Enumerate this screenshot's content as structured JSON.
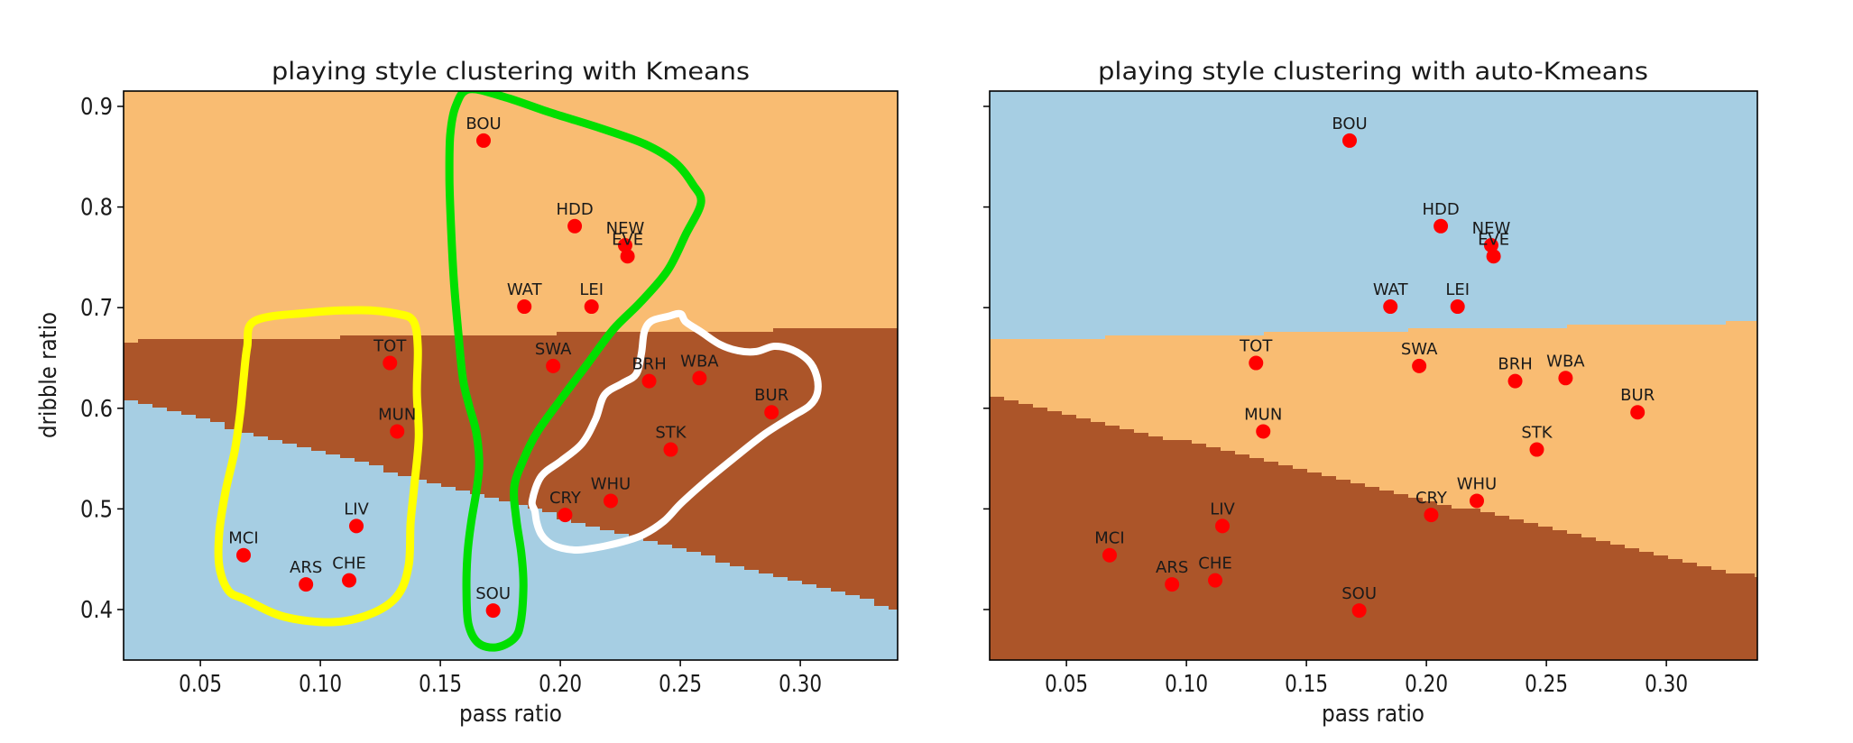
{
  "page": {
    "background": "#ffffff"
  },
  "colors": {
    "region_orange": "#F9BC72",
    "region_brown": "#AC5529",
    "region_blue": "#A6CEE3",
    "point_red": "#FF0000",
    "contour_green": "#00DF00",
    "contour_yellow": "#FFFF00",
    "contour_white": "#FFFFFF",
    "axis_black": "#000000"
  },
  "chart_data": [
    {
      "type": "scatter",
      "title": "playing style clustering with Kmeans",
      "xlabel": "pass ratio",
      "ylabel": "dribble ratio",
      "xlim": [
        0.018,
        0.341
      ],
      "ylim": [
        0.35,
        0.915
      ],
      "grid": false,
      "x_tick_labels": [
        "0.05",
        "0.10",
        "0.15",
        "0.20",
        "0.25",
        "0.30"
      ],
      "x_tick_values": [
        0.05,
        0.1,
        0.15,
        0.2,
        0.25,
        0.3
      ],
      "y_tick_labels": [
        "0.4",
        "0.5",
        "0.6",
        "0.7",
        "0.8",
        "0.9"
      ],
      "y_tick_values": [
        0.4,
        0.5,
        0.6,
        0.7,
        0.8,
        0.9
      ],
      "show_y_tick_labels": true,
      "point_color": "#FF0000",
      "points": [
        {
          "label": "BOU",
          "x": 0.168,
          "y": 0.866
        },
        {
          "label": "HDD",
          "x": 0.206,
          "y": 0.781
        },
        {
          "label": "NEW",
          "x": 0.227,
          "y": 0.762
        },
        {
          "label": "EVE",
          "x": 0.228,
          "y": 0.751
        },
        {
          "label": "WAT",
          "x": 0.185,
          "y": 0.701
        },
        {
          "label": "LEI",
          "x": 0.213,
          "y": 0.701
        },
        {
          "label": "TOT",
          "x": 0.129,
          "y": 0.645
        },
        {
          "label": "SWA",
          "x": 0.197,
          "y": 0.642
        },
        {
          "label": "BRH",
          "x": 0.237,
          "y": 0.627
        },
        {
          "label": "WBA",
          "x": 0.258,
          "y": 0.63
        },
        {
          "label": "BUR",
          "x": 0.288,
          "y": 0.596
        },
        {
          "label": "MUN",
          "x": 0.132,
          "y": 0.577
        },
        {
          "label": "STK",
          "x": 0.246,
          "y": 0.559
        },
        {
          "label": "WHU",
          "x": 0.221,
          "y": 0.508
        },
        {
          "label": "CRY",
          "x": 0.202,
          "y": 0.494
        },
        {
          "label": "LIV",
          "x": 0.115,
          "y": 0.483
        },
        {
          "label": "MCI",
          "x": 0.068,
          "y": 0.454
        },
        {
          "label": "ARS",
          "x": 0.094,
          "y": 0.425
        },
        {
          "label": "CHE",
          "x": 0.112,
          "y": 0.429
        },
        {
          "label": "SOU",
          "x": 0.172,
          "y": 0.399
        }
      ],
      "decision_regions": {
        "top_color": "#F9BC72",
        "middle_color": "#AC5529",
        "bottom_color": "#A6CEE3",
        "upper_boundary_y": [
          0.667,
          0.68
        ],
        "lower_boundary_y": [
          0.608,
          0.399
        ]
      },
      "annotation_contours": [
        {
          "name": "green-cluster-outline",
          "color": "#00DF00",
          "stroke_width": 9,
          "points": [
            [
              0.162,
              0.917
            ],
            [
              0.1564,
              0.9
            ],
            [
              0.1541,
              0.871
            ],
            [
              0.1538,
              0.8266
            ],
            [
              0.1545,
              0.7773
            ],
            [
              0.1556,
              0.728
            ],
            [
              0.1575,
              0.6742
            ],
            [
              0.1594,
              0.6294
            ],
            [
              0.162,
              0.6025
            ],
            [
              0.165,
              0.5756
            ],
            [
              0.1662,
              0.5443
            ],
            [
              0.165,
              0.5174
            ],
            [
              0.1628,
              0.486
            ],
            [
              0.1613,
              0.4547
            ],
            [
              0.1609,
              0.4188
            ],
            [
              0.1617,
              0.3857
            ],
            [
              0.1658,
              0.3668
            ],
            [
              0.1733,
              0.3624
            ],
            [
              0.1808,
              0.3713
            ],
            [
              0.1835,
              0.3875
            ],
            [
              0.1846,
              0.4233
            ],
            [
              0.1838,
              0.4547
            ],
            [
              0.1816,
              0.4905
            ],
            [
              0.1808,
              0.5219
            ],
            [
              0.1846,
              0.5488
            ],
            [
              0.1902,
              0.5756
            ],
            [
              0.1996,
              0.607
            ],
            [
              0.2109,
              0.6428
            ],
            [
              0.2222,
              0.6787
            ],
            [
              0.2335,
              0.7056
            ],
            [
              0.2447,
              0.7369
            ],
            [
              0.2523,
              0.7728
            ],
            [
              0.2586,
              0.8041
            ],
            [
              0.2553,
              0.8221
            ],
            [
              0.2477,
              0.8445
            ],
            [
              0.2353,
              0.8624
            ],
            [
              0.2165,
              0.8785
            ],
            [
              0.1959,
              0.8938
            ],
            [
              0.1771,
              0.909
            ]
          ]
        },
        {
          "name": "yellow-cluster-outline",
          "color": "#FFFF00",
          "stroke_width": 9,
          "points": [
            [
              0.0726,
              0.6867
            ],
            [
              0.0944,
              0.6948
            ],
            [
              0.1169,
              0.6975
            ],
            [
              0.132,
              0.6939
            ],
            [
              0.1387,
              0.6867
            ],
            [
              0.1406,
              0.6608
            ],
            [
              0.1402,
              0.616
            ],
            [
              0.141,
              0.5712
            ],
            [
              0.1391,
              0.5219
            ],
            [
              0.1376,
              0.486
            ],
            [
              0.1368,
              0.4439
            ],
            [
              0.1323,
              0.4143
            ],
            [
              0.1218,
              0.3964
            ],
            [
              0.1056,
              0.3875
            ],
            [
              0.085,
              0.3928
            ],
            [
              0.0688,
              0.4099
            ],
            [
              0.0617,
              0.4188
            ],
            [
              0.0579,
              0.443
            ],
            [
              0.0579,
              0.4771
            ],
            [
              0.0605,
              0.5174
            ],
            [
              0.0643,
              0.5577
            ],
            [
              0.0665,
              0.5935
            ],
            [
              0.068,
              0.6294
            ],
            [
              0.0695,
              0.6608
            ]
          ]
        },
        {
          "name": "white-cluster-outline",
          "color": "#FFFFFF",
          "stroke_width": 8,
          "points": [
            [
              0.1883,
              0.5084
            ],
            [
              0.1894,
              0.4977
            ],
            [
              0.1902,
              0.486
            ],
            [
              0.1921,
              0.4744
            ],
            [
              0.1959,
              0.4654
            ],
            [
              0.2008,
              0.4609
            ],
            [
              0.2071,
              0.4591
            ],
            [
              0.2135,
              0.4609
            ],
            [
              0.2195,
              0.4636
            ],
            [
              0.2271,
              0.4681
            ],
            [
              0.2346,
              0.4744
            ],
            [
              0.2432,
              0.4878
            ],
            [
              0.2504,
              0.5057
            ],
            [
              0.2609,
              0.5281
            ],
            [
              0.2733,
              0.5523
            ],
            [
              0.2853,
              0.5747
            ],
            [
              0.2966,
              0.5918
            ],
            [
              0.3038,
              0.6025
            ],
            [
              0.3071,
              0.6151
            ],
            [
              0.3068,
              0.6321
            ],
            [
              0.3034,
              0.6473
            ],
            [
              0.2966,
              0.6581
            ],
            [
              0.2891,
              0.6616
            ],
            [
              0.2816,
              0.6563
            ],
            [
              0.2741,
              0.6572
            ],
            [
              0.2665,
              0.6634
            ],
            [
              0.2586,
              0.676
            ],
            [
              0.2523,
              0.6858
            ],
            [
              0.25,
              0.6939
            ],
            [
              0.2447,
              0.6912
            ],
            [
              0.238,
              0.6867
            ],
            [
              0.235,
              0.676
            ],
            [
              0.2338,
              0.6545
            ],
            [
              0.2316,
              0.6339
            ],
            [
              0.2259,
              0.6249
            ],
            [
              0.2184,
              0.6133
            ],
            [
              0.2147,
              0.5891
            ],
            [
              0.209,
              0.5649
            ],
            [
              0.2004,
              0.5478
            ],
            [
              0.1921,
              0.5326
            ]
          ]
        }
      ]
    },
    {
      "type": "scatter",
      "title": "playing style clustering with auto-Kmeans",
      "xlabel": "pass ratio",
      "ylabel": "",
      "xlim": [
        0.018,
        0.338
      ],
      "ylim": [
        0.35,
        0.915
      ],
      "grid": false,
      "x_tick_labels": [
        "0.05",
        "0.10",
        "0.15",
        "0.20",
        "0.25",
        "0.30"
      ],
      "x_tick_values": [
        0.05,
        0.1,
        0.15,
        0.2,
        0.25,
        0.3
      ],
      "y_tick_labels": [],
      "y_tick_values": [
        0.4,
        0.5,
        0.6,
        0.7,
        0.8,
        0.9
      ],
      "show_y_tick_labels": false,
      "point_color": "#FF0000",
      "points": [
        {
          "label": "BOU",
          "x": 0.168,
          "y": 0.866
        },
        {
          "label": "HDD",
          "x": 0.206,
          "y": 0.781
        },
        {
          "label": "NEW",
          "x": 0.227,
          "y": 0.762
        },
        {
          "label": "EVE",
          "x": 0.228,
          "y": 0.751
        },
        {
          "label": "WAT",
          "x": 0.185,
          "y": 0.701
        },
        {
          "label": "LEI",
          "x": 0.213,
          "y": 0.701
        },
        {
          "label": "TOT",
          "x": 0.129,
          "y": 0.645
        },
        {
          "label": "SWA",
          "x": 0.197,
          "y": 0.642
        },
        {
          "label": "BRH",
          "x": 0.237,
          "y": 0.627
        },
        {
          "label": "WBA",
          "x": 0.258,
          "y": 0.63
        },
        {
          "label": "BUR",
          "x": 0.288,
          "y": 0.596
        },
        {
          "label": "MUN",
          "x": 0.132,
          "y": 0.577
        },
        {
          "label": "STK",
          "x": 0.246,
          "y": 0.559
        },
        {
          "label": "WHU",
          "x": 0.221,
          "y": 0.508
        },
        {
          "label": "CRY",
          "x": 0.202,
          "y": 0.494
        },
        {
          "label": "LIV",
          "x": 0.115,
          "y": 0.483
        },
        {
          "label": "MCI",
          "x": 0.068,
          "y": 0.454
        },
        {
          "label": "ARS",
          "x": 0.094,
          "y": 0.425
        },
        {
          "label": "CHE",
          "x": 0.112,
          "y": 0.429
        },
        {
          "label": "SOU",
          "x": 0.172,
          "y": 0.399
        }
      ],
      "decision_regions": {
        "top_color": "#A6CEE3",
        "middle_color": "#F9BC72",
        "bottom_color": "#AC5529",
        "upper_boundary_y": [
          0.668,
          0.686
        ],
        "lower_boundary_y": [
          0.611,
          0.43
        ]
      },
      "annotation_contours": []
    }
  ]
}
